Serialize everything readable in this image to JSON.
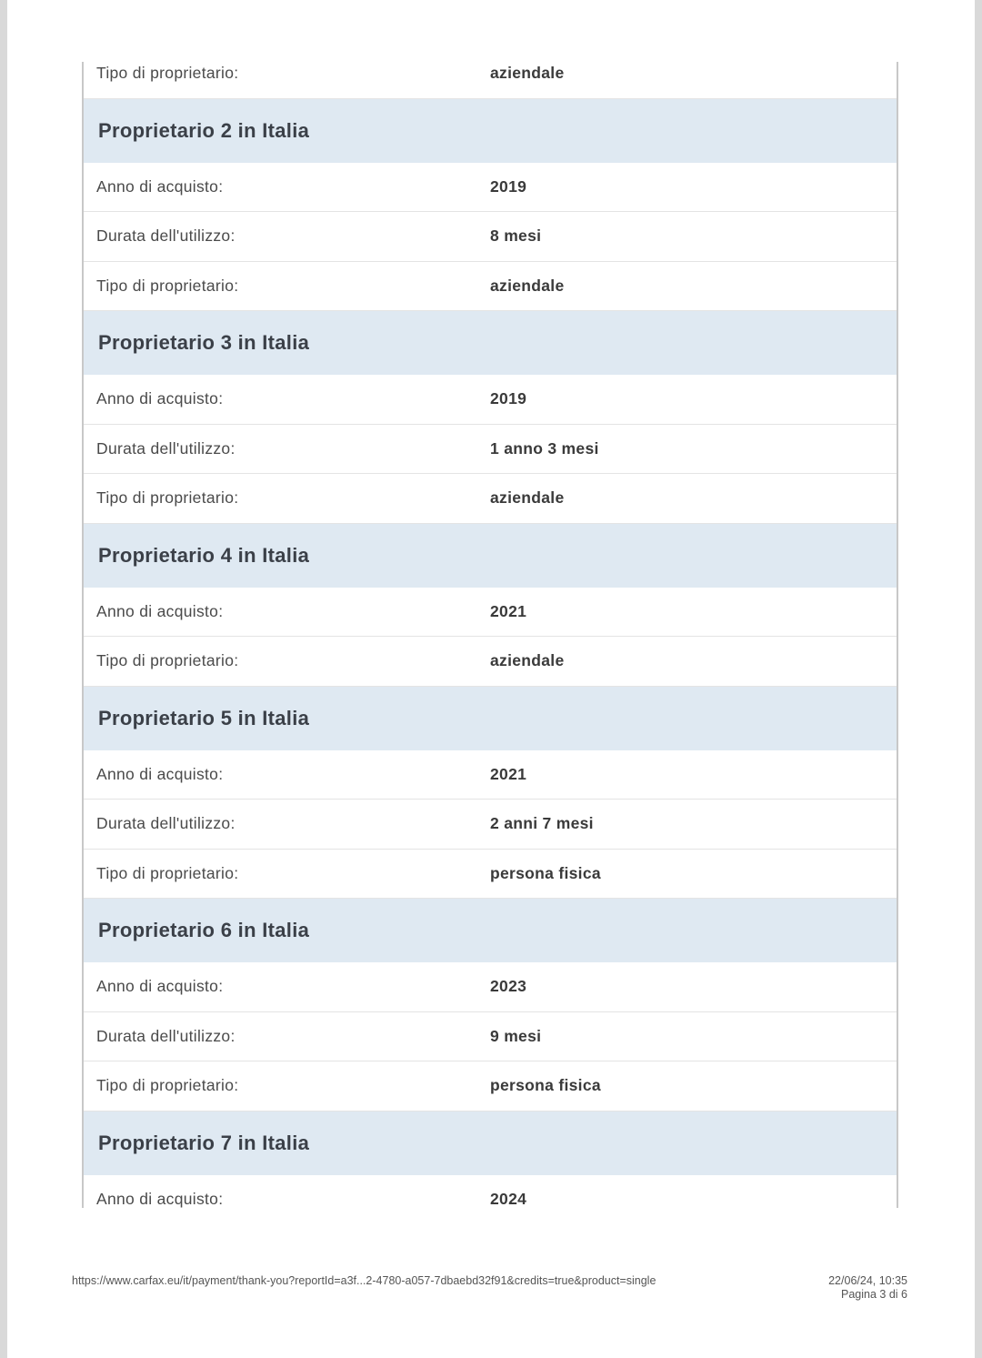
{
  "sections": [
    {
      "title": "",
      "rows": [
        {
          "label": "Tipo di proprietario:",
          "value": "aziendale"
        }
      ]
    },
    {
      "title": "Proprietario 2 in Italia",
      "rows": [
        {
          "label": "Anno di acquisto:",
          "value": "2019"
        },
        {
          "label": "Durata dell'utilizzo:",
          "value": "8 mesi"
        },
        {
          "label": "Tipo di proprietario:",
          "value": "aziendale"
        }
      ]
    },
    {
      "title": "Proprietario 3 in Italia",
      "rows": [
        {
          "label": "Anno di acquisto:",
          "value": "2019"
        },
        {
          "label": "Durata dell'utilizzo:",
          "value": "1 anno 3 mesi"
        },
        {
          "label": "Tipo di proprietario:",
          "value": "aziendale"
        }
      ]
    },
    {
      "title": "Proprietario 4 in Italia",
      "rows": [
        {
          "label": "Anno di acquisto:",
          "value": "2021"
        },
        {
          "label": "Tipo di proprietario:",
          "value": "aziendale"
        }
      ]
    },
    {
      "title": "Proprietario 5 in Italia",
      "rows": [
        {
          "label": "Anno di acquisto:",
          "value": "2021"
        },
        {
          "label": "Durata dell'utilizzo:",
          "value": "2 anni 7 mesi"
        },
        {
          "label": "Tipo di proprietario:",
          "value": "persona fisica"
        }
      ]
    },
    {
      "title": "Proprietario 6 in Italia",
      "rows": [
        {
          "label": "Anno di acquisto:",
          "value": "2023"
        },
        {
          "label": "Durata dell'utilizzo:",
          "value": "9 mesi"
        },
        {
          "label": "Tipo di proprietario:",
          "value": "persona fisica"
        }
      ]
    },
    {
      "title": "Proprietario 7 in Italia",
      "rows": [
        {
          "label": "Anno di acquisto:",
          "value": "2024"
        }
      ]
    }
  ],
  "footer": {
    "url": "https://www.carfax.eu/it/payment/thank-you?reportId=a3f...2-4780-a057-7dbaebd32f91&credits=true&product=single",
    "datetime": "22/06/24, 10:35",
    "page": "Pagina 3 di 6"
  },
  "colors": {
    "section_header_bg": "#dfe9f2",
    "text": "#3b4048"
  }
}
